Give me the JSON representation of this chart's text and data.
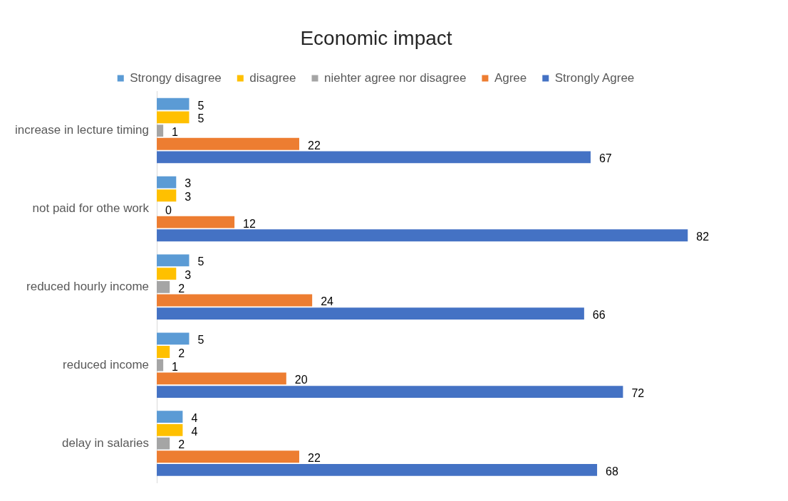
{
  "chart_data": {
    "type": "bar",
    "orientation": "horizontal",
    "title": "Economic impact",
    "categories": [
      "increase in lecture timing",
      "not paid for othe work",
      "reduced hourly income",
      "reduced income",
      "delay in salaries"
    ],
    "series": [
      {
        "name": "Strongy disagree",
        "color": "#5b9bd5",
        "values": [
          5,
          3,
          5,
          5,
          4
        ]
      },
      {
        "name": "disagree",
        "color": "#ffc000",
        "values": [
          5,
          3,
          3,
          2,
          4
        ]
      },
      {
        "name": "niehter agree nor disagree",
        "color": "#a5a5a5",
        "values": [
          1,
          0,
          2,
          1,
          2
        ]
      },
      {
        "name": "Agree",
        "color": "#ed7d31",
        "values": [
          22,
          12,
          24,
          20,
          22
        ]
      },
      {
        "name": "Strongly Agree",
        "color": "#4472c4",
        "values": [
          67,
          82,
          66,
          72,
          68
        ]
      }
    ],
    "data_labels": true,
    "legend": "top",
    "grid": false,
    "tick_labels": "y"
  }
}
